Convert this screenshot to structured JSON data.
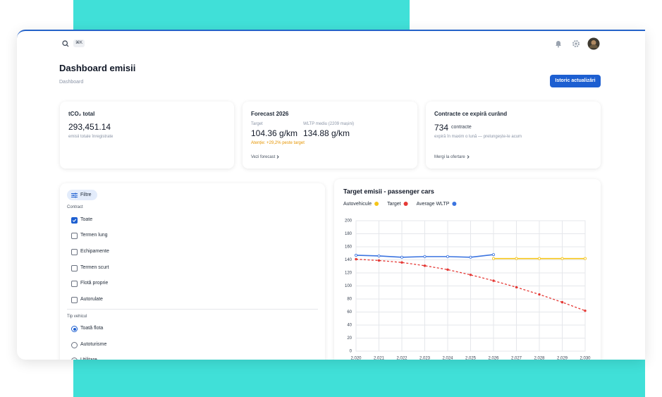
{
  "header": {
    "shortcut": "⌘K",
    "title": "Dashboard emisii",
    "breadcrumb": "Dashboard",
    "button": "Istoric actualizări"
  },
  "cards": [
    {
      "title": "tCO₂ total",
      "value": "293,451.14",
      "note": "emisii totale înregistrate"
    },
    {
      "title": "Forecast 2026",
      "target_label": "Target",
      "target_value": "104.36 g/km",
      "wltp_label": "WLTP mediu (2209 mașini)",
      "wltp_value": "134.88 g/km",
      "warning": "Atenție: +29,2% peste target",
      "link": "Vezi forecast"
    },
    {
      "title": "Contracte ce expiră curând",
      "value": "734",
      "unit": "contracte",
      "note": "expiră în maxim o lună — prelungește-le acum",
      "link": "Mergi la ofertare"
    }
  ],
  "filters": {
    "button": "Filtre",
    "contract_label": "Contract",
    "contract_options": [
      {
        "label": "Toate",
        "checked": true
      },
      {
        "label": "Termen lung",
        "checked": false
      },
      {
        "label": "Echipamente",
        "checked": false
      },
      {
        "label": "Termen scurt",
        "checked": false
      },
      {
        "label": "Flotă proprie",
        "checked": false
      },
      {
        "label": "Autorulate",
        "checked": false
      }
    ],
    "vehicle_label": "Tip vehicul",
    "vehicle_options": [
      {
        "label": "Toată flota",
        "selected": true
      },
      {
        "label": "Autoturisme",
        "selected": false
      },
      {
        "label": "Utilitare",
        "selected": false
      }
    ]
  },
  "chart_data": {
    "type": "line",
    "title": "Target emisii - passenger cars",
    "x": [
      2020,
      2021,
      2022,
      2023,
      2024,
      2025,
      2026,
      2027,
      2028,
      2029,
      2030
    ],
    "xlim": [
      2020,
      2030
    ],
    "xticks": [
      {
        "value": 2020,
        "label": "2,020"
      },
      {
        "value": 2021,
        "label": "2,021"
      },
      {
        "value": 2022,
        "label": "2,022"
      },
      {
        "value": 2023,
        "label": "2,023"
      },
      {
        "value": 2024,
        "label": "2,024"
      },
      {
        "value": 2025,
        "label": "2,025"
      },
      {
        "value": 2026,
        "label": "2,026"
      },
      {
        "value": 2027,
        "label": "2,027"
      },
      {
        "value": 2028,
        "label": "2,028"
      },
      {
        "value": 2029,
        "label": "2,029"
      },
      {
        "value": 2030,
        "label": "2,030"
      }
    ],
    "ylim": [
      0,
      200
    ],
    "yticks": [
      0,
      20,
      40,
      60,
      80,
      100,
      120,
      140,
      160,
      180,
      200
    ],
    "grid": true,
    "series": [
      {
        "name": "Autovehicule",
        "color": "#f5c518",
        "dashed": false,
        "values": [
          null,
          null,
          null,
          null,
          null,
          null,
          142,
          142,
          142,
          142,
          142
        ]
      },
      {
        "name": "Target",
        "color": "#e53935",
        "dashed": true,
        "values": [
          141,
          139,
          136,
          131,
          125,
          117,
          108,
          98,
          87,
          75,
          62
        ]
      },
      {
        "name": "Average WLTP",
        "color": "#3b74e0",
        "dashed": false,
        "values": [
          147,
          146,
          144,
          145,
          145,
          144,
          148,
          null,
          null,
          null,
          null
        ]
      }
    ]
  }
}
